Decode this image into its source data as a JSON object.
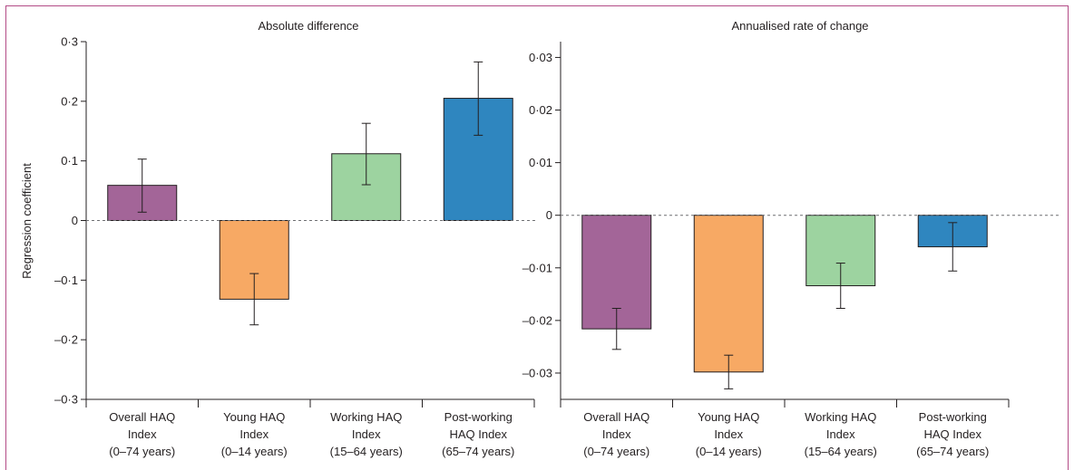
{
  "colors": {
    "frame": "#b34b86",
    "overall": "#a36598",
    "young": "#f7a964",
    "working": "#9dd3a0",
    "postworking": "#2f86bf",
    "axis": "#231f20",
    "zero_line": "#6d6e71"
  },
  "chart_data": [
    {
      "type": "bar",
      "title": "Absolute difference",
      "ylabel": "Regression coefficient",
      "xlabel": "",
      "ylim": [
        -0.3,
        0.3
      ],
      "yticks": [
        0.3,
        0.2,
        0.1,
        0,
        -0.1,
        -0.2,
        -0.3
      ],
      "ytick_labels": [
        "0·3",
        "0·2",
        "0·1",
        "0",
        "–0·1",
        "–0·2",
        "–0·3"
      ],
      "categories": [
        [
          "Overall HAQ",
          "Index",
          "(0–74 years)"
        ],
        [
          "Young HAQ",
          "Index",
          "(0–14 years)"
        ],
        [
          "Working HAQ",
          "Index",
          "(15–64 years)"
        ],
        [
          "Post-working",
          "HAQ Index",
          "(65–74 years)"
        ]
      ],
      "values": [
        0.059,
        -0.132,
        0.112,
        0.205
      ],
      "error_low": [
        0.014,
        -0.175,
        0.06,
        0.143
      ],
      "error_high": [
        0.103,
        -0.089,
        0.163,
        0.266
      ],
      "bar_colors": [
        "#a36598",
        "#f7a964",
        "#9dd3a0",
        "#2f86bf"
      ],
      "grid": false,
      "zero_line": "dashed"
    },
    {
      "type": "bar",
      "title": "Annualised rate of change",
      "ylabel": "",
      "xlabel": "",
      "ylim": [
        -0.035,
        0.033
      ],
      "yticks": [
        0.03,
        0.02,
        0.01,
        0,
        -0.01,
        -0.02,
        -0.03
      ],
      "ytick_labels": [
        "0·03",
        "0·02",
        "0·01",
        "0",
        "–0·01",
        "–0·02",
        "–0·03"
      ],
      "categories": [
        [
          "Overall HAQ",
          "Index",
          "(0–74 years)"
        ],
        [
          "Young HAQ",
          "Index",
          "(0–14 years)"
        ],
        [
          "Working HAQ",
          "Index",
          "(15–64 years)"
        ],
        [
          "Post-working",
          "HAQ Index",
          "(65–74 years)"
        ]
      ],
      "values": [
        -0.0216,
        -0.0298,
        -0.0134,
        -0.006
      ],
      "error_low": [
        -0.0255,
        -0.033,
        -0.0177,
        -0.0106
      ],
      "error_high": [
        -0.0177,
        -0.0266,
        -0.0091,
        -0.0014
      ],
      "bar_colors": [
        "#a36598",
        "#f7a964",
        "#9dd3a0",
        "#2f86bf"
      ],
      "grid": false,
      "zero_line": "dashed"
    }
  ]
}
